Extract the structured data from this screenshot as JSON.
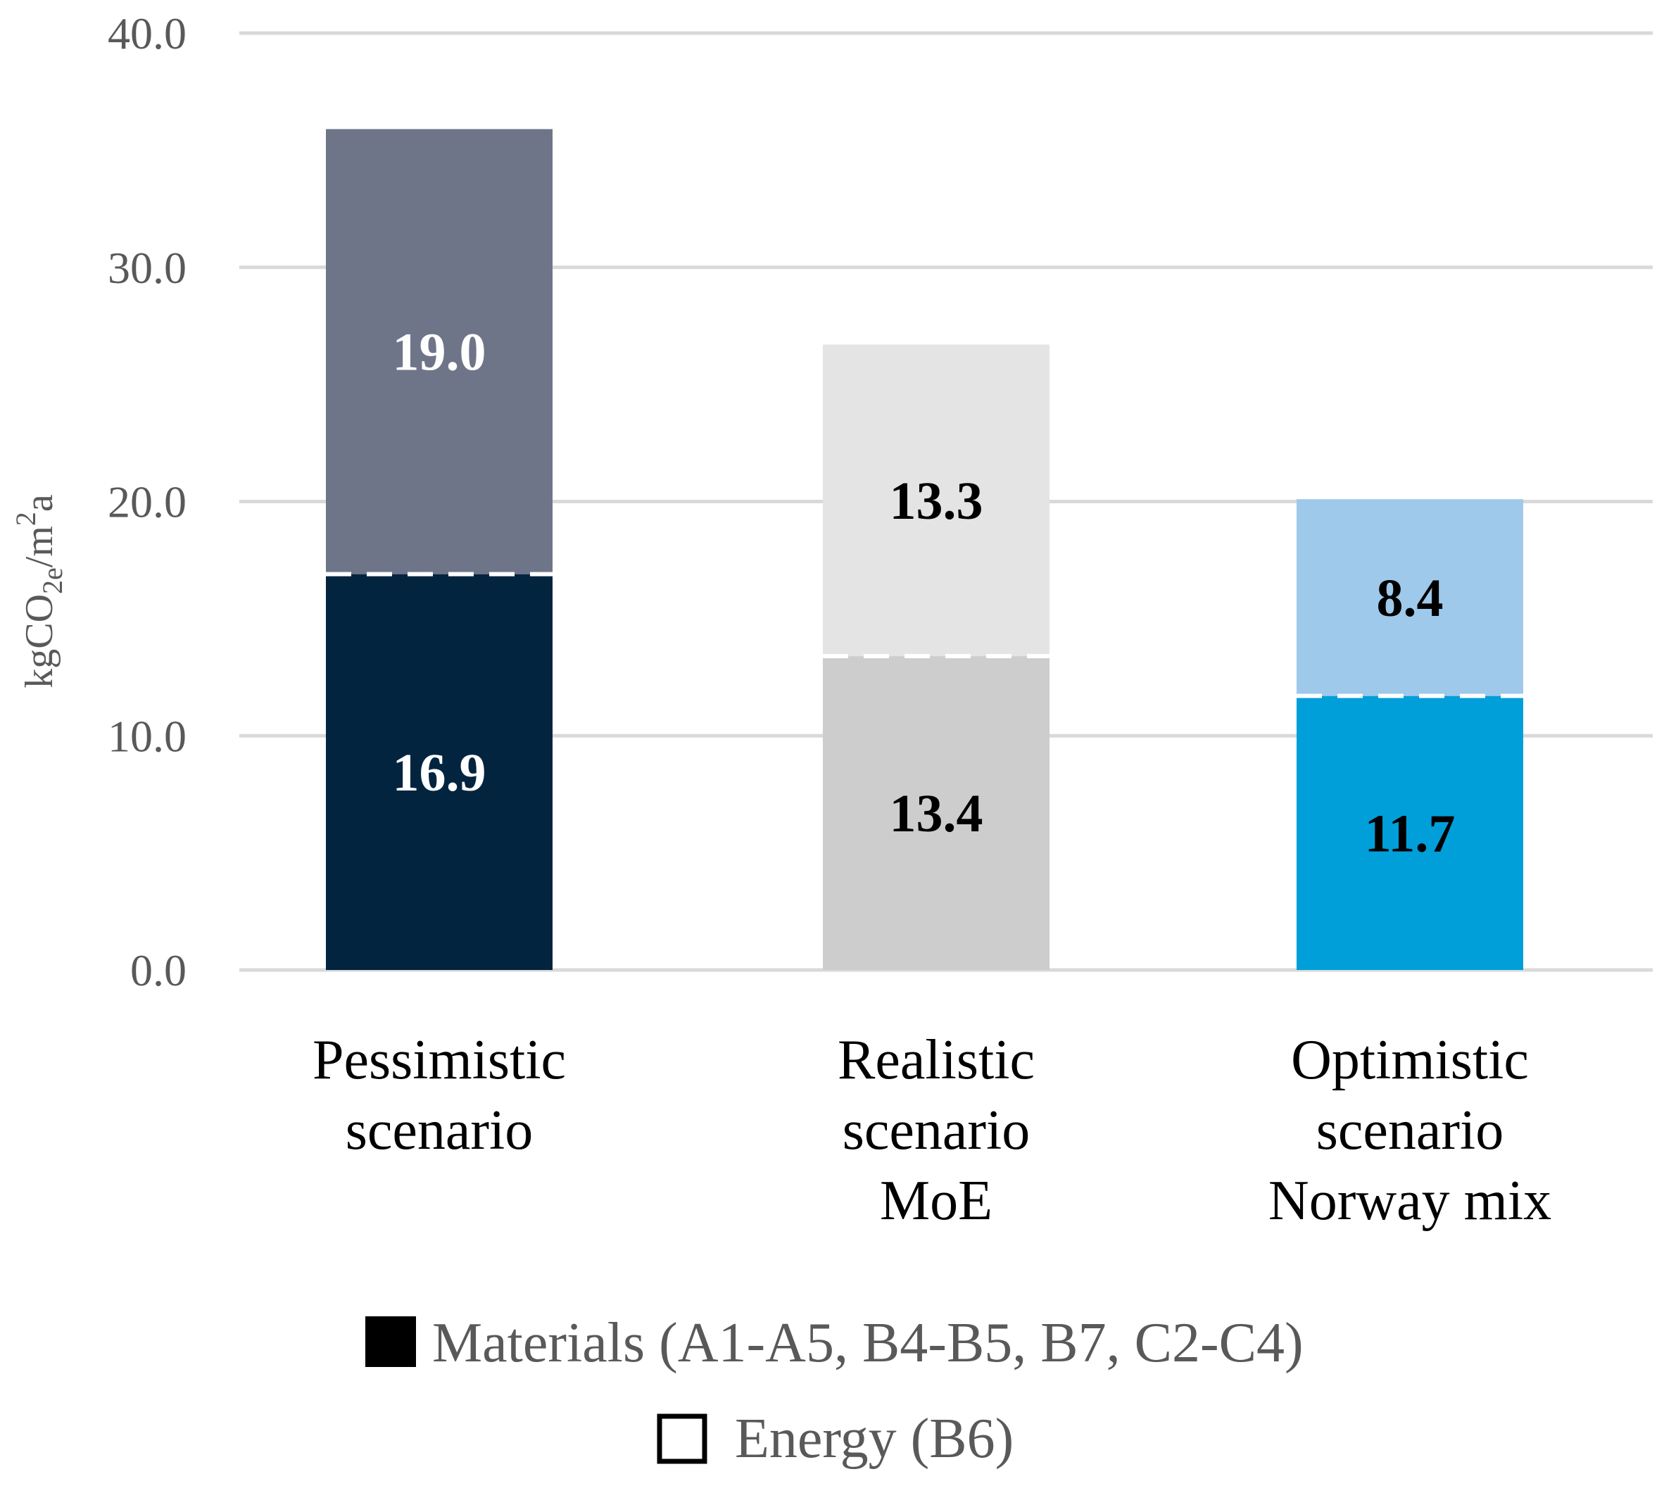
{
  "chart_data": {
    "type": "bar",
    "stacked": true,
    "categories": [
      [
        "Pessimistic",
        "scenario"
      ],
      [
        "Realistic",
        "scenario",
        "MoE"
      ],
      [
        "Optimistic",
        "scenario",
        "Norway mix"
      ]
    ],
    "series": [
      {
        "name": "Materials (A1-A5, B4-B5, B7, C2-C4)",
        "values": [
          16.9,
          13.4,
          11.7
        ],
        "labels": [
          "16.9",
          "13.4",
          "11.7"
        ],
        "colors": [
          "#03243f",
          "#cecdce",
          "#009fd9"
        ],
        "label_colors": [
          "#ffffff",
          "#000000",
          "#000000"
        ]
      },
      {
        "name": "Energy (B6)",
        "values": [
          19.0,
          13.3,
          8.4
        ],
        "labels": [
          "19.0",
          "13.3",
          "8.4"
        ],
        "colors": [
          "#6f7589",
          "#e4e4e5",
          "#9fc9ea"
        ],
        "label_colors": [
          "#ffffff",
          "#000000",
          "#000000"
        ]
      }
    ],
    "ylabel": "kgCO2e/m2a",
    "ylim": [
      0,
      40
    ],
    "yticks": [
      "0.0",
      "10.0",
      "20.0",
      "30.0",
      "40.0"
    ],
    "grid": true,
    "legend_position": "bottom",
    "legend": [
      {
        "label": "Materials (A1-A5, B4-B5, B7, C2-C4)",
        "swatch": "filled",
        "color": "#000000"
      },
      {
        "label": "Energy (B6)",
        "swatch": "outline",
        "color": "#000000"
      }
    ],
    "colors": {
      "grid": "#d9d9d9",
      "tick_text": "#595959",
      "divider": "#ffffff"
    }
  }
}
